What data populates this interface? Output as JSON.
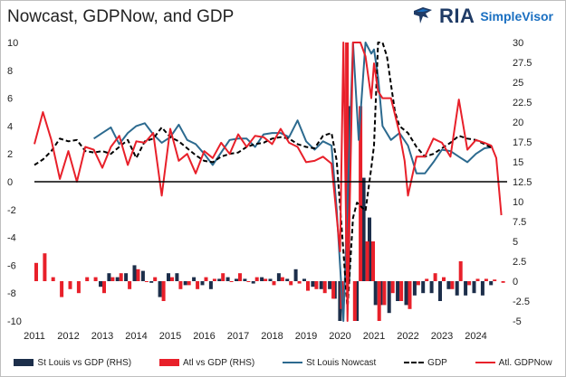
{
  "title": "Nowcast, GDPNow, and GDP",
  "logo": {
    "brand": "RIA",
    "product": "SimpleVisor"
  },
  "colors": {
    "navy": "#1c2e4a",
    "red": "#e8202a",
    "blue": "#2c6a8f",
    "black": "#000000"
  },
  "chart_data": {
    "type": "line",
    "x_tick_labels": [
      "2011",
      "2012",
      "2013",
      "2014",
      "2015",
      "2016",
      "2017",
      "2018",
      "2019",
      "2020",
      "2021",
      "2022",
      "2023",
      "2024"
    ],
    "left_axis": {
      "ylim": [
        -10,
        10
      ],
      "ticks": [
        "10",
        "8",
        "6",
        "4",
        "2",
        "0",
        "-2",
        "-4",
        "-6",
        "-8",
        "-10"
      ]
    },
    "right_axis": {
      "ylim": [
        -5,
        30
      ],
      "ticks": [
        "30",
        "27.5",
        "25",
        "22.5",
        "20",
        "17.5",
        "15",
        "12.5",
        "10",
        "7.5",
        "5",
        "2.5",
        "0",
        "-2.5",
        "-5"
      ]
    },
    "grid": false,
    "legend_position": "bottom",
    "legend": [
      {
        "label": "St Louis vs GDP (RHS)",
        "kind": "bar",
        "color": "#1c2e4a"
      },
      {
        "label": "Atl vs GDP (RHS)",
        "kind": "bar",
        "color": "#e8202a"
      },
      {
        "label": "St Louis Nowcast",
        "kind": "line",
        "color": "#2c6a8f"
      },
      {
        "label": "GDP",
        "kind": "dash",
        "color": "#000000"
      },
      {
        "label": "Atl. GDPNow",
        "kind": "line",
        "color": "#e8202a"
      }
    ],
    "series": [
      {
        "name": "Atl. GDPNow",
        "axis": "left",
        "style": "line",
        "color": "#e8202a",
        "points": [
          [
            2011.0,
            2.7
          ],
          [
            2011.25,
            5.0
          ],
          [
            2011.5,
            3.0
          ],
          [
            2011.75,
            0.2
          ],
          [
            2012.0,
            2.2
          ],
          [
            2012.25,
            0.0
          ],
          [
            2012.5,
            2.5
          ],
          [
            2012.75,
            2.3
          ],
          [
            2013.0,
            1.0
          ],
          [
            2013.25,
            2.5
          ],
          [
            2013.5,
            3.3
          ],
          [
            2013.75,
            1.2
          ],
          [
            2014.0,
            2.9
          ],
          [
            2014.25,
            2.8
          ],
          [
            2014.5,
            3.5
          ],
          [
            2014.75,
            -1.0
          ],
          [
            2015.0,
            3.8
          ],
          [
            2015.25,
            1.5
          ],
          [
            2015.5,
            2.0
          ],
          [
            2015.75,
            0.6
          ],
          [
            2016.0,
            2.2
          ],
          [
            2016.25,
            1.7
          ],
          [
            2016.5,
            2.8
          ],
          [
            2016.75,
            2.0
          ],
          [
            2017.0,
            3.4
          ],
          [
            2017.25,
            2.5
          ],
          [
            2017.5,
            3.3
          ],
          [
            2017.75,
            3.2
          ],
          [
            2018.0,
            2.7
          ],
          [
            2018.25,
            3.8
          ],
          [
            2018.5,
            2.8
          ],
          [
            2018.75,
            2.5
          ],
          [
            2019.0,
            1.4
          ],
          [
            2019.25,
            1.5
          ],
          [
            2019.5,
            1.8
          ],
          [
            2019.75,
            1.3
          ],
          [
            2020.0,
            -5.0
          ],
          [
            2020.1,
            12.0
          ],
          [
            2020.22,
            -15.0
          ],
          [
            2020.38,
            12.0
          ],
          [
            2020.5,
            14.0
          ],
          [
            2020.6,
            10.0
          ],
          [
            2020.75,
            9.0
          ],
          [
            2020.92,
            6.0
          ],
          [
            2021.0,
            8.5
          ],
          [
            2021.12,
            6.5
          ],
          [
            2021.25,
            6.0
          ],
          [
            2021.5,
            6.0
          ],
          [
            2021.75,
            3.5
          ],
          [
            2021.9,
            1.5
          ],
          [
            2022.0,
            -1.0
          ],
          [
            2022.25,
            1.8
          ],
          [
            2022.5,
            1.8
          ],
          [
            2022.75,
            3.1
          ],
          [
            2023.0,
            2.8
          ],
          [
            2023.25,
            1.8
          ],
          [
            2023.5,
            5.9
          ],
          [
            2023.75,
            2.3
          ],
          [
            2024.0,
            3.0
          ],
          [
            2024.25,
            2.8
          ],
          [
            2024.45,
            2.6
          ],
          [
            2024.6,
            1.7
          ],
          [
            2024.75,
            -2.4
          ]
        ]
      },
      {
        "name": "St Louis Nowcast",
        "axis": "left",
        "style": "line",
        "color": "#2c6a8f",
        "points": [
          [
            2012.75,
            3.1
          ],
          [
            2013.0,
            3.5
          ],
          [
            2013.25,
            3.9
          ],
          [
            2013.5,
            2.7
          ],
          [
            2013.75,
            3.5
          ],
          [
            2014.0,
            4.0
          ],
          [
            2014.25,
            4.2
          ],
          [
            2014.5,
            3.4
          ],
          [
            2014.75,
            2.8
          ],
          [
            2015.0,
            3.2
          ],
          [
            2015.25,
            4.1
          ],
          [
            2015.5,
            3.0
          ],
          [
            2015.75,
            2.7
          ],
          [
            2016.0,
            2.0
          ],
          [
            2016.25,
            1.2
          ],
          [
            2016.5,
            2.1
          ],
          [
            2016.75,
            3.0
          ],
          [
            2017.0,
            3.1
          ],
          [
            2017.25,
            3.1
          ],
          [
            2017.5,
            2.5
          ],
          [
            2017.75,
            3.4
          ],
          [
            2018.0,
            3.5
          ],
          [
            2018.25,
            3.5
          ],
          [
            2018.5,
            3.2
          ],
          [
            2018.75,
            4.4
          ],
          [
            2019.0,
            2.9
          ],
          [
            2019.25,
            2.3
          ],
          [
            2019.5,
            2.9
          ],
          [
            2019.75,
            2.6
          ],
          [
            2019.9,
            -2.0
          ],
          [
            2020.1,
            -15.0
          ],
          [
            2020.38,
            10.0
          ],
          [
            2020.55,
            3.0
          ],
          [
            2020.75,
            10.0
          ],
          [
            2020.92,
            9.2
          ],
          [
            2021.0,
            9.5
          ],
          [
            2021.12,
            7.5
          ],
          [
            2021.25,
            4.0
          ],
          [
            2021.5,
            3.0
          ],
          [
            2021.75,
            3.5
          ],
          [
            2022.0,
            2.6
          ],
          [
            2022.25,
            0.6
          ],
          [
            2022.5,
            0.6
          ],
          [
            2022.75,
            1.4
          ],
          [
            2023.0,
            2.3
          ],
          [
            2023.25,
            2.2
          ],
          [
            2023.5,
            1.8
          ],
          [
            2023.75,
            1.4
          ],
          [
            2024.0,
            2.0
          ],
          [
            2024.25,
            2.4
          ],
          [
            2024.5,
            2.5
          ]
        ]
      },
      {
        "name": "GDP",
        "axis": "left",
        "style": "dash",
        "color": "#000000",
        "points": [
          [
            2011.0,
            1.2
          ],
          [
            2011.25,
            1.6
          ],
          [
            2011.5,
            2.2
          ],
          [
            2011.75,
            3.1
          ],
          [
            2012.0,
            2.9
          ],
          [
            2012.25,
            3.0
          ],
          [
            2012.5,
            2.2
          ],
          [
            2012.75,
            2.1
          ],
          [
            2013.0,
            2.2
          ],
          [
            2013.25,
            2.0
          ],
          [
            2013.5,
            2.5
          ],
          [
            2013.75,
            3.0
          ],
          [
            2014.0,
            1.7
          ],
          [
            2014.25,
            2.9
          ],
          [
            2014.5,
            3.1
          ],
          [
            2014.75,
            3.9
          ],
          [
            2015.0,
            3.2
          ],
          [
            2015.25,
            2.9
          ],
          [
            2015.5,
            2.4
          ],
          [
            2015.75,
            1.9
          ],
          [
            2016.0,
            1.5
          ],
          [
            2016.25,
            1.4
          ],
          [
            2016.5,
            1.8
          ],
          [
            2016.75,
            2.0
          ],
          [
            2017.0,
            2.1
          ],
          [
            2017.25,
            2.5
          ],
          [
            2017.5,
            2.7
          ],
          [
            2017.75,
            2.8
          ],
          [
            2018.0,
            3.1
          ],
          [
            2018.25,
            3.2
          ],
          [
            2018.5,
            3.1
          ],
          [
            2018.75,
            2.7
          ],
          [
            2019.0,
            2.5
          ],
          [
            2019.25,
            2.4
          ],
          [
            2019.5,
            3.3
          ],
          [
            2019.75,
            3.5
          ],
          [
            2019.9,
            1.5
          ],
          [
            2020.1,
            -5.0
          ],
          [
            2020.22,
            -9.2
          ],
          [
            2020.38,
            -2.6
          ],
          [
            2020.5,
            -1.5
          ],
          [
            2020.75,
            -2.1
          ],
          [
            2020.92,
            1.0
          ],
          [
            2021.0,
            2.6
          ],
          [
            2021.12,
            10.0
          ],
          [
            2021.25,
            12.5
          ],
          [
            2021.38,
            9.0
          ],
          [
            2021.5,
            7.0
          ],
          [
            2021.62,
            5.0
          ],
          [
            2021.75,
            4.0
          ],
          [
            2022.0,
            3.5
          ],
          [
            2022.25,
            2.5
          ],
          [
            2022.5,
            1.8
          ],
          [
            2022.75,
            2.0
          ],
          [
            2023.0,
            2.4
          ],
          [
            2023.25,
            2.8
          ],
          [
            2023.5,
            3.3
          ],
          [
            2023.75,
            3.1
          ],
          [
            2024.0,
            3.0
          ],
          [
            2024.25,
            2.7
          ],
          [
            2024.5,
            2.4
          ]
        ]
      }
    ],
    "bars": [
      {
        "name": "St Louis vs GDP (RHS)",
        "axis": "right",
        "color": "#1c2e4a",
        "points": [
          [
            2013.0,
            -0.7
          ],
          [
            2013.25,
            1.0
          ],
          [
            2013.5,
            0.5
          ],
          [
            2013.75,
            1.0
          ],
          [
            2014.0,
            2.0
          ],
          [
            2014.25,
            1.3
          ],
          [
            2014.5,
            -0.2
          ],
          [
            2014.75,
            -2.0
          ],
          [
            2015.0,
            1.0
          ],
          [
            2015.25,
            1.0
          ],
          [
            2015.5,
            -0.5
          ],
          [
            2015.75,
            0.5
          ],
          [
            2016.0,
            -0.5
          ],
          [
            2016.25,
            -1.0
          ],
          [
            2016.5,
            0.3
          ],
          [
            2016.75,
            0.5
          ],
          [
            2017.0,
            0.3
          ],
          [
            2017.25,
            0.3
          ],
          [
            2017.5,
            -0.3
          ],
          [
            2017.75,
            0.5
          ],
          [
            2018.0,
            0.3
          ],
          [
            2018.25,
            1.0
          ],
          [
            2018.5,
            0.3
          ],
          [
            2018.75,
            1.5
          ],
          [
            2019.0,
            0.3
          ],
          [
            2019.25,
            -0.7
          ],
          [
            2019.5,
            -1.0
          ],
          [
            2019.75,
            -1.0
          ],
          [
            2019.9,
            -2.2
          ],
          [
            2020.05,
            -5.0
          ],
          [
            2020.3,
            22.0
          ],
          [
            2020.55,
            -5.0
          ],
          [
            2020.75,
            13.0
          ],
          [
            2020.92,
            8.0
          ],
          [
            2021.1,
            -3.0
          ],
          [
            2021.25,
            -3.0
          ],
          [
            2021.5,
            -4.0
          ],
          [
            2021.75,
            -2.5
          ],
          [
            2022.0,
            -3.0
          ],
          [
            2022.25,
            -1.8
          ],
          [
            2022.5,
            -1.5
          ],
          [
            2022.75,
            -1.5
          ],
          [
            2023.0,
            -2.5
          ],
          [
            2023.25,
            -1.0
          ],
          [
            2023.5,
            -1.8
          ],
          [
            2023.75,
            -1.8
          ],
          [
            2024.0,
            -1.5
          ],
          [
            2024.25,
            -1.8
          ],
          [
            2024.5,
            -0.5
          ]
        ]
      },
      {
        "name": "Atl vs GDP (RHS)",
        "axis": "right",
        "color": "#e8202a",
        "points": [
          [
            2011.0,
            2.3
          ],
          [
            2011.25,
            3.5
          ],
          [
            2011.5,
            0.5
          ],
          [
            2011.75,
            -2.0
          ],
          [
            2012.0,
            -1.0
          ],
          [
            2012.25,
            -1.5
          ],
          [
            2012.5,
            0.5
          ],
          [
            2012.75,
            0.5
          ],
          [
            2013.0,
            -1.5
          ],
          [
            2013.25,
            0.5
          ],
          [
            2013.5,
            1.0
          ],
          [
            2013.75,
            -1.0
          ],
          [
            2014.0,
            1.5
          ],
          [
            2014.25,
            0.0
          ],
          [
            2014.5,
            0.5
          ],
          [
            2014.75,
            -2.5
          ],
          [
            2015.0,
            0.5
          ],
          [
            2015.25,
            -1.0
          ],
          [
            2015.5,
            -0.5
          ],
          [
            2015.75,
            -1.0
          ],
          [
            2016.0,
            0.5
          ],
          [
            2016.25,
            0.3
          ],
          [
            2016.5,
            1.0
          ],
          [
            2016.75,
            0.0
          ],
          [
            2017.0,
            1.0
          ],
          [
            2017.25,
            0.0
          ],
          [
            2017.5,
            0.5
          ],
          [
            2017.75,
            0.3
          ],
          [
            2018.0,
            -0.5
          ],
          [
            2018.25,
            0.5
          ],
          [
            2018.5,
            -0.5
          ],
          [
            2018.75,
            -0.3
          ],
          [
            2019.0,
            -1.2
          ],
          [
            2019.25,
            -1.0
          ],
          [
            2019.5,
            -1.5
          ],
          [
            2019.75,
            -2.2
          ],
          [
            2020.0,
            -3.5
          ],
          [
            2020.15,
            30.0
          ],
          [
            2020.38,
            -5.0
          ],
          [
            2020.55,
            22.0
          ],
          [
            2020.75,
            5.0
          ],
          [
            2020.92,
            5.0
          ],
          [
            2021.1,
            -5.0
          ],
          [
            2021.25,
            -3.0
          ],
          [
            2021.5,
            -1.5
          ],
          [
            2021.75,
            -2.5
          ],
          [
            2022.0,
            -3.5
          ],
          [
            2022.25,
            -0.5
          ],
          [
            2022.5,
            0.3
          ],
          [
            2022.75,
            1.0
          ],
          [
            2023.0,
            0.5
          ],
          [
            2023.25,
            -1.0
          ],
          [
            2023.5,
            2.5
          ],
          [
            2023.75,
            -0.5
          ],
          [
            2024.0,
            0.3
          ],
          [
            2024.25,
            0.3
          ],
          [
            2024.5,
            0.2
          ],
          [
            2024.75,
            -0.2
          ]
        ]
      }
    ]
  }
}
